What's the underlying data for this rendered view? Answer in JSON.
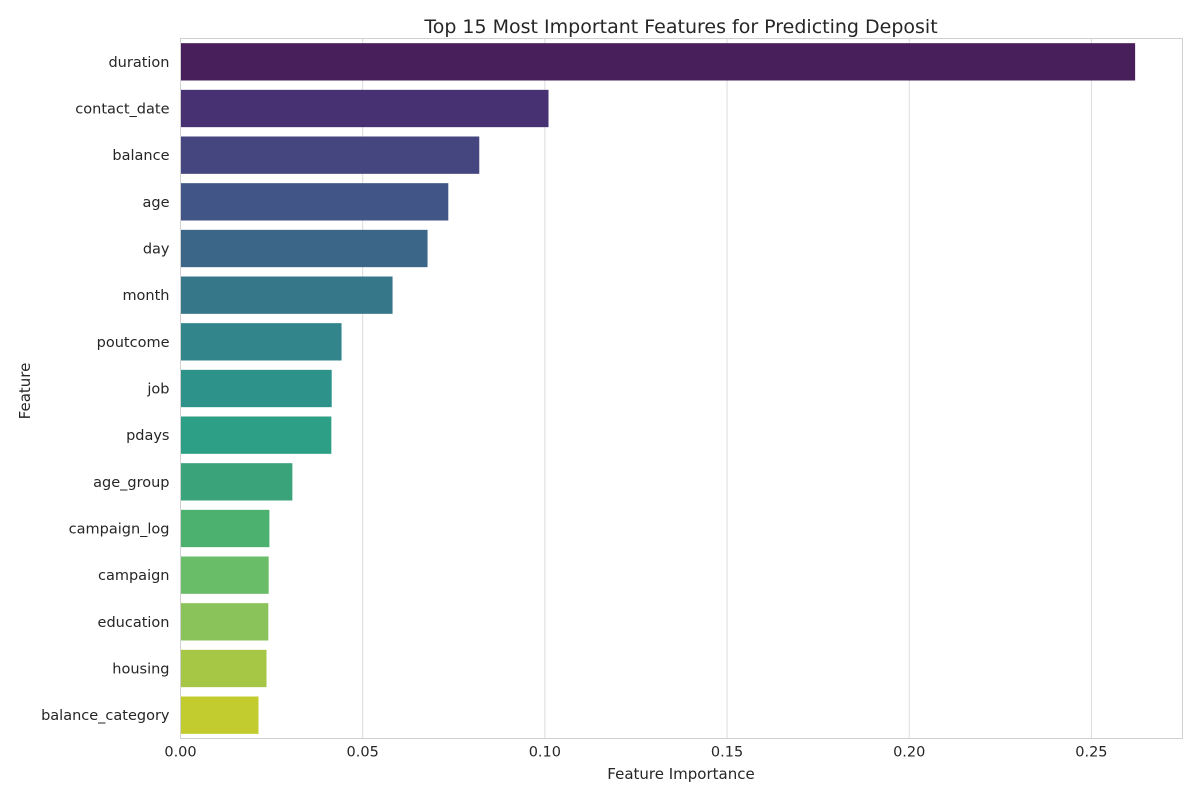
{
  "chart_data": {
    "type": "bar",
    "orientation": "horizontal",
    "title": "Top 15 Most Important Features for Predicting Deposit",
    "xlabel": "Feature Importance",
    "ylabel": "Feature",
    "xlim": [
      0,
      0.275
    ],
    "xticks": [
      0.0,
      0.05,
      0.1,
      0.15,
      0.2,
      0.25
    ],
    "xtick_labels": [
      "0.00",
      "0.05",
      "0.10",
      "0.15",
      "0.20",
      "0.25"
    ],
    "grid": "vertical",
    "palette": "viridis",
    "categories": [
      "duration",
      "contact_date",
      "balance",
      "age",
      "day",
      "month",
      "poutcome",
      "job",
      "pdays",
      "age_group",
      "campaign_log",
      "campaign",
      "education",
      "housing",
      "balance_category"
    ],
    "values": [
      0.262,
      0.101,
      0.082,
      0.0735,
      0.0678,
      0.0582,
      0.0442,
      0.0415,
      0.0414,
      0.0307,
      0.0244,
      0.0242,
      0.0241,
      0.0236,
      0.0214
    ],
    "colors": [
      "#481f5b",
      "#473172",
      "#454580",
      "#415686",
      "#3b6688",
      "#36778a",
      "#31858b",
      "#2d928a",
      "#2d9f86",
      "#3aa37a",
      "#4cb06e",
      "#6abd68",
      "#8ac35a",
      "#a5c745",
      "#c2cc2e"
    ]
  }
}
